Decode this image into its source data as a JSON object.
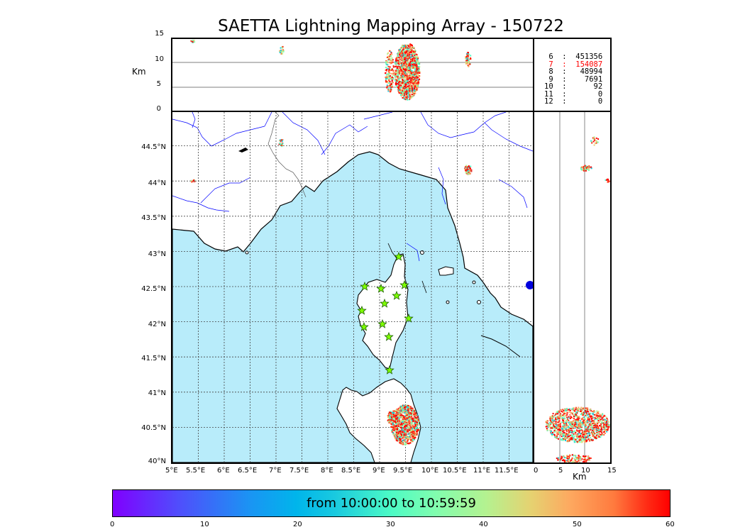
{
  "title": "SAETTA Lightning Mapping Array - 150722",
  "top_panel": {
    "y_label": "Km",
    "y_ticks": [
      "15",
      "10",
      "5",
      "0"
    ]
  },
  "side_panel": {
    "x_label": "Km",
    "x_ticks": [
      "0",
      "5",
      "10",
      "15"
    ]
  },
  "map": {
    "lat_labels": [
      "44.5°N",
      "44°N",
      "43.5°N",
      "43°N",
      "42.5°N",
      "42°N",
      "41.5°N",
      "41°N",
      "40.5°N",
      "40°N"
    ],
    "lon_labels": [
      "5°E",
      "5.5°E",
      "6°E",
      "6.5°E",
      "7°E",
      "7.5°E",
      "8°E",
      "8.5°E",
      "9°E",
      "9.5°E",
      "10°E",
      "10.5°E",
      "11°E",
      "11.5°E"
    ],
    "colors": {
      "sea": "#b8ecfa",
      "land": "#ffffff",
      "rivers": "#0000ff",
      "grid": "#555555"
    },
    "stations_count": 13
  },
  "stats": [
    {
      "stations": "6",
      "sep": ":",
      "count": "451356",
      "highlight": false
    },
    {
      "stations": "7",
      "sep": ":",
      "count": "154087",
      "highlight": true
    },
    {
      "stations": "8",
      "sep": ":",
      "count": "48994",
      "highlight": false
    },
    {
      "stations": "9",
      "sep": ":",
      "count": "7691",
      "highlight": false
    },
    {
      "stations": "10",
      "sep": ":",
      "count": "92",
      "highlight": false
    },
    {
      "stations": "11",
      "sep": ":",
      "count": "0",
      "highlight": false
    },
    {
      "stations": "12",
      "sep": ":",
      "count": "0",
      "highlight": false
    }
  ],
  "colorbar": {
    "label": "from 10:00:00 to 10:59:59",
    "ticks": [
      "0",
      "10",
      "20",
      "30",
      "40",
      "50",
      "60"
    ]
  }
}
